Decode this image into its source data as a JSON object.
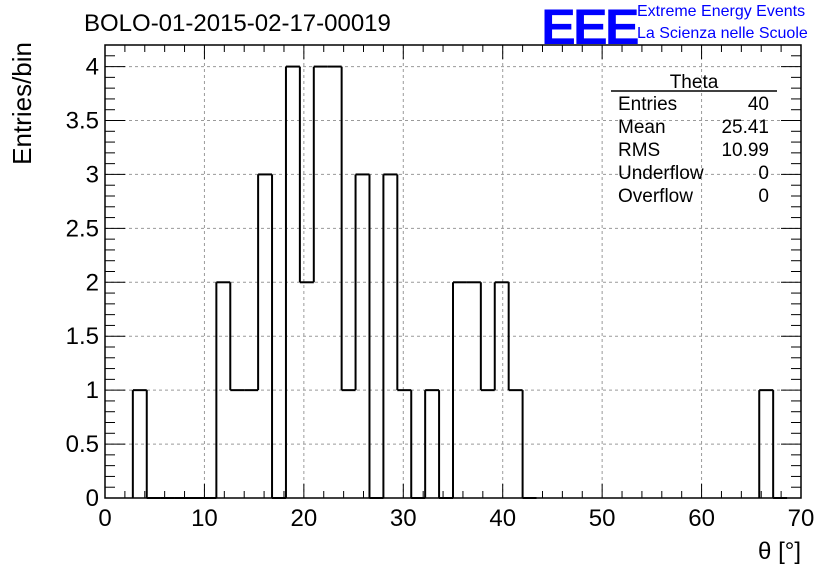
{
  "header": {
    "title": "BOLO-01-2015-02-17-00019",
    "logo_text": "EEE",
    "logo_line1": "Extreme Energy Events",
    "logo_line2": "La Scienza nelle Scuole"
  },
  "stats": {
    "name": "Theta",
    "rows": [
      {
        "label": "Entries",
        "value": "40"
      },
      {
        "label": "Mean",
        "value": "25.41"
      },
      {
        "label": "RMS",
        "value": "10.99"
      },
      {
        "label": "Underflow",
        "value": "0"
      },
      {
        "label": "Overflow",
        "value": "0"
      }
    ]
  },
  "colors": {
    "logo": "#0000ff",
    "line": "#000000",
    "grid": "#9a9a9a"
  },
  "chart_data": {
    "type": "bar",
    "histogram": true,
    "title": "BOLO-01-2015-02-17-00019",
    "xlabel": "θ [°]",
    "ylabel": "Entries/bin",
    "xlim": [
      0,
      70
    ],
    "ylim": [
      0,
      4.2
    ],
    "grid": true,
    "bin_width": 1.4,
    "bins": [
      {
        "x": 2.8,
        "value": 1
      },
      {
        "x": 4.2,
        "value": 0
      },
      {
        "x": 5.6,
        "value": 0
      },
      {
        "x": 7.0,
        "value": 0
      },
      {
        "x": 8.4,
        "value": 0
      },
      {
        "x": 9.8,
        "value": 0
      },
      {
        "x": 11.2,
        "value": 2
      },
      {
        "x": 12.6,
        "value": 1
      },
      {
        "x": 14.0,
        "value": 1
      },
      {
        "x": 15.4,
        "value": 3
      },
      {
        "x": 16.8,
        "value": 0
      },
      {
        "x": 18.2,
        "value": 4
      },
      {
        "x": 19.6,
        "value": 2
      },
      {
        "x": 21.0,
        "value": 4
      },
      {
        "x": 22.4,
        "value": 4
      },
      {
        "x": 23.8,
        "value": 1
      },
      {
        "x": 25.2,
        "value": 3
      },
      {
        "x": 26.6,
        "value": 0
      },
      {
        "x": 28.0,
        "value": 3
      },
      {
        "x": 29.4,
        "value": 1
      },
      {
        "x": 30.8,
        "value": 0
      },
      {
        "x": 32.2,
        "value": 1
      },
      {
        "x": 33.6,
        "value": 0
      },
      {
        "x": 35.0,
        "value": 2
      },
      {
        "x": 36.4,
        "value": 2
      },
      {
        "x": 37.8,
        "value": 1
      },
      {
        "x": 39.2,
        "value": 2
      },
      {
        "x": 40.6,
        "value": 1
      },
      {
        "x": 42.0,
        "value": 0
      },
      {
        "x": 65.8,
        "value": 1
      },
      {
        "x": 67.2,
        "value": 0
      }
    ],
    "x_ticks": [
      "0",
      "10",
      "20",
      "30",
      "40",
      "50",
      "60",
      "70"
    ],
    "y_ticks": [
      "0",
      "0.5",
      "1",
      "1.5",
      "2",
      "2.5",
      "3",
      "3.5",
      "4"
    ],
    "legend": "top-right"
  }
}
